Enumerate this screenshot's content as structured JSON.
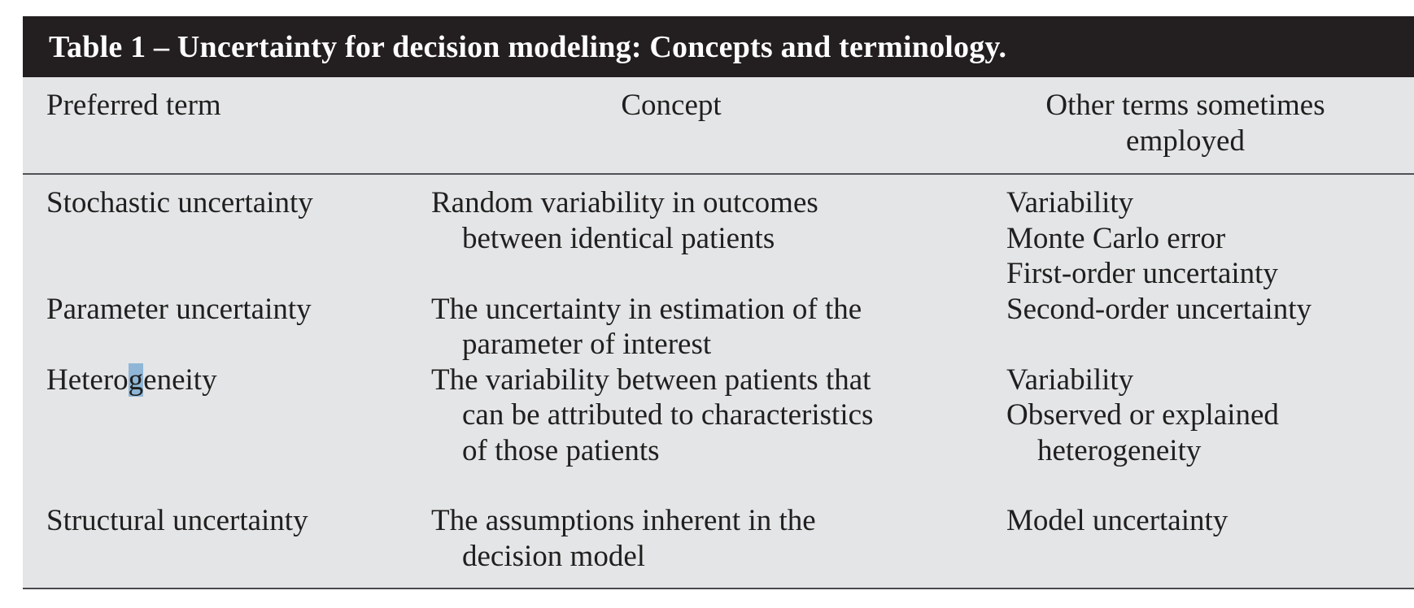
{
  "title": "Table 1 – Uncertainty for decision modeling: Concepts and terminology.",
  "header": {
    "col1": "Preferred term",
    "col2": "Concept",
    "col3_line1": "Other terms sometimes",
    "col3_line2": "employed"
  },
  "rows": [
    {
      "term": "Stochastic uncertainty",
      "concept_lines": [
        "Random variability in outcomes",
        "between identical patients"
      ],
      "other_lines": [
        "Variability",
        "Monte Carlo error",
        "First-order uncertainty"
      ]
    },
    {
      "term": "Parameter uncertainty",
      "concept_lines": [
        "The uncertainty in estimation of the",
        "parameter of interest"
      ],
      "other_lines": [
        "Second-order uncertainty"
      ]
    },
    {
      "term_prefix": "Hetero",
      "term_highlight": "g",
      "term_suffix": "eneity",
      "concept_lines": [
        "The variability between patients that",
        "can be attributed to characteristics",
        "of those patients"
      ],
      "other_lines": [
        "Variability",
        "Observed or explained",
        "heterogeneity"
      ]
    },
    {
      "term": "Structural uncertainty",
      "concept_lines": [
        "The assumptions inherent in the",
        "decision model"
      ],
      "other_lines": [
        "Model uncertainty"
      ]
    }
  ],
  "colors": {
    "title_bar_bg": "#231e1f",
    "title_text": "#ffffff",
    "body_bg": "#e4e5e6",
    "text": "#1f1f1f",
    "header_rule": "#515156",
    "bottom_rule": "#4a4a4e",
    "selection_highlight": "#8fb6d6"
  }
}
